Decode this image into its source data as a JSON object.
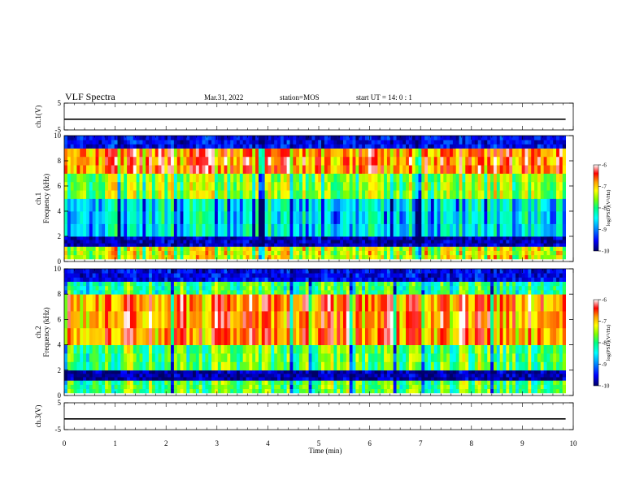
{
  "header": {
    "title": "VLF Spectra",
    "date": "Mar.31, 2022",
    "station": "station=MOS",
    "start": "start UT =  14: 0  : 1"
  },
  "colors": {
    "colormap": [
      "#000066",
      "#0000ff",
      "#00a0ff",
      "#00ffff",
      "#00ff80",
      "#7fff00",
      "#ffff00",
      "#ffa000",
      "#ff0000",
      "#ffffff"
    ],
    "trace": "#000000"
  },
  "chart_data": [
    {
      "panel": "ch1-waveform",
      "type": "line",
      "ylabel": "ch.1(V)",
      "ylim": [
        -5,
        5
      ],
      "yticks": [
        "5",
        "-5"
      ],
      "series": [
        {
          "values": [
            -1,
            -1,
            -1,
            -1,
            -1,
            -1,
            -1,
            -1,
            -1,
            -1,
            -1
          ]
        }
      ],
      "x": [
        0,
        1,
        2,
        3,
        4,
        5,
        6,
        7,
        8,
        9,
        10
      ]
    },
    {
      "panel": "ch1-spectrogram",
      "type": "heatmap",
      "ylabel": "ch.1\nFrequency (kHz)",
      "ylim": [
        0,
        10
      ],
      "yticks": [
        "0",
        "2",
        "4",
        "6",
        "8",
        "10"
      ],
      "colorbar": {
        "label": "log(PSD)(V²/Hz)",
        "range": [
          -10,
          -6
        ],
        "ticks": [
          "-6",
          "-7",
          "-8",
          "-9",
          "-10"
        ]
      },
      "bands_khz": [
        [
          0.2,
          1.2,
          -7.5
        ],
        [
          1.2,
          2.0,
          -9.8
        ],
        [
          2.0,
          5.0,
          -8.8
        ],
        [
          5.0,
          7.0,
          -7.8
        ],
        [
          7.0,
          9.0,
          -6.8
        ],
        [
          9.0,
          10.0,
          -9.6
        ]
      ]
    },
    {
      "panel": "ch2-spectrogram",
      "type": "heatmap",
      "ylabel": "ch.2\nFrequency (kHz)",
      "ylim": [
        0,
        10
      ],
      "yticks": [
        "0",
        "2",
        "4",
        "6",
        "8",
        "10"
      ],
      "colorbar": {
        "label": "log(PSD)(V²/Hz)",
        "range": [
          -10,
          -6
        ],
        "ticks": [
          "-6",
          "-7",
          "-8",
          "-9",
          "-10"
        ]
      },
      "bands_khz": [
        [
          0.2,
          1.2,
          -8.0
        ],
        [
          1.2,
          2.0,
          -9.8
        ],
        [
          2.0,
          4.0,
          -8.0
        ],
        [
          4.0,
          8.0,
          -6.8
        ],
        [
          8.0,
          9.0,
          -8.2
        ],
        [
          9.0,
          10.0,
          -9.6
        ]
      ]
    },
    {
      "panel": "ch3-waveform",
      "type": "line",
      "ylabel": "ch.3(V)",
      "ylim": [
        -5,
        5
      ],
      "yticks": [
        "5",
        "-5"
      ],
      "series": [
        {
          "values": [
            -1,
            -1,
            -1,
            -1,
            -1,
            -1,
            -1,
            -1,
            -1,
            -1,
            -1
          ]
        }
      ],
      "x": [
        0,
        1,
        2,
        3,
        4,
        5,
        6,
        7,
        8,
        9,
        10
      ]
    }
  ],
  "xaxis": {
    "label": "Time (min)",
    "xlim": [
      0,
      10
    ],
    "ticks": [
      "0",
      "1",
      "2",
      "3",
      "4",
      "5",
      "6",
      "7",
      "8",
      "9",
      "10"
    ],
    "data_end_min": 9.85
  }
}
